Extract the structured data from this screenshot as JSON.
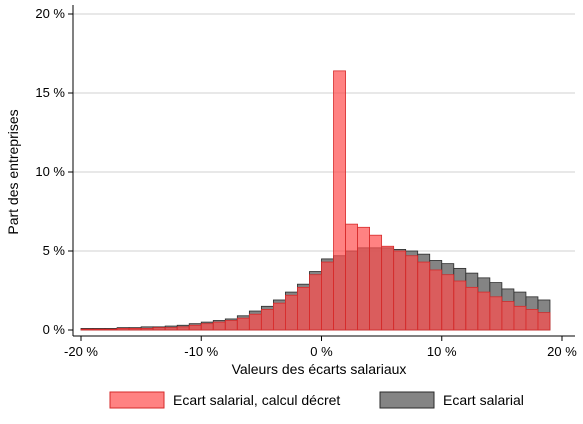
{
  "chart_data": {
    "type": "bar",
    "xlabel": "Valeurs des écarts salariaux",
    "ylabel": "Part des entreprises",
    "xlim": [
      -20,
      20
    ],
    "ylim": [
      0,
      20
    ],
    "x_ticks": [
      {
        "value": -20,
        "label": "-20 %"
      },
      {
        "value": -10,
        "label": "-10 %"
      },
      {
        "value": 0,
        "label": "0 %"
      },
      {
        "value": 10,
        "label": "10 %"
      },
      {
        "value": 20,
        "label": "20 %"
      }
    ],
    "y_ticks": [
      {
        "value": 0,
        "label": "0 %"
      },
      {
        "value": 5,
        "label": "5 %"
      },
      {
        "value": 10,
        "label": "10 %"
      },
      {
        "value": 15,
        "label": "15 %"
      },
      {
        "value": 20,
        "label": "20 %"
      }
    ],
    "grid": true,
    "legend_position": "bottom",
    "bin_width": 1,
    "bins": [
      -19.5,
      -18.5,
      -17.5,
      -16.5,
      -15.5,
      -14.5,
      -13.5,
      -12.5,
      -11.5,
      -10.5,
      -9.5,
      -8.5,
      -7.5,
      -6.5,
      -5.5,
      -4.5,
      -3.5,
      -2.5,
      -1.5,
      -0.5,
      0.5,
      1.5,
      2.5,
      3.5,
      4.5,
      5.5,
      6.5,
      7.5,
      8.5,
      9.5,
      10.5,
      11.5,
      12.5,
      13.5,
      14.5,
      15.5,
      16.5,
      17.5,
      18.5
    ],
    "series": [
      {
        "name": "Ecart salarial",
        "color": "#6e6e6e",
        "values": [
          0.1,
          0.1,
          0.1,
          0.15,
          0.15,
          0.2,
          0.2,
          0.25,
          0.3,
          0.4,
          0.5,
          0.6,
          0.7,
          0.9,
          1.2,
          1.5,
          1.9,
          2.4,
          2.9,
          3.7,
          4.5,
          4.7,
          5.0,
          5.2,
          5.2,
          5.2,
          5.1,
          5.0,
          4.8,
          4.4,
          4.2,
          3.9,
          3.6,
          3.3,
          3.0,
          2.6,
          2.4,
          2.1,
          1.9
        ]
      },
      {
        "name": "Ecart salarial, calcul décret",
        "color": "#ff4d4d",
        "values": [
          0.05,
          0.05,
          0.05,
          0.1,
          0.1,
          0.1,
          0.15,
          0.15,
          0.2,
          0.3,
          0.4,
          0.5,
          0.6,
          0.75,
          1.0,
          1.3,
          1.7,
          2.2,
          2.7,
          3.5,
          4.3,
          16.4,
          6.7,
          6.5,
          6.0,
          5.3,
          5.0,
          4.7,
          4.3,
          3.8,
          3.5,
          3.1,
          2.7,
          2.4,
          2.1,
          1.8,
          1.5,
          1.3,
          1.1
        ]
      }
    ]
  }
}
